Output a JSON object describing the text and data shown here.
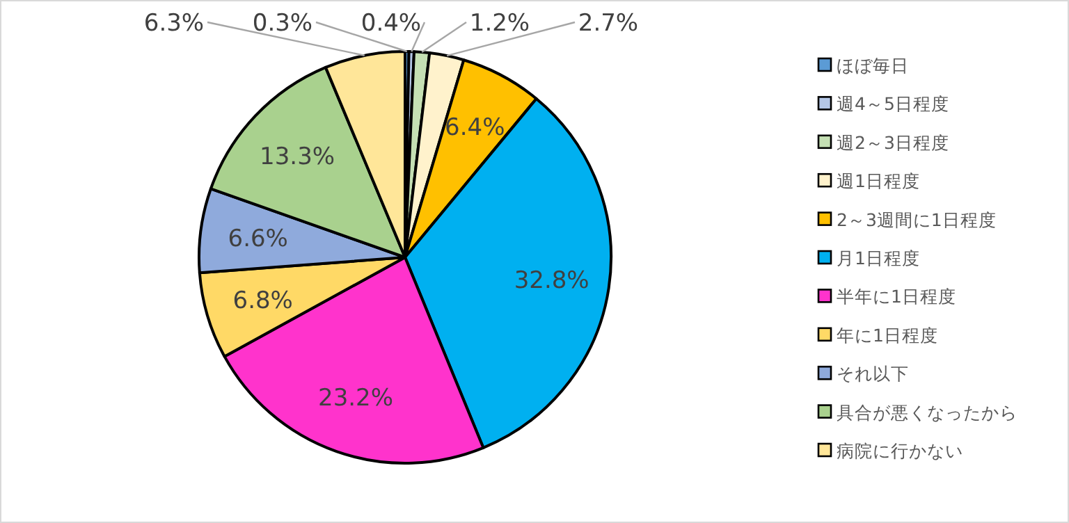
{
  "chart_data": {
    "type": "pie",
    "categories": [
      "ほぼ毎日",
      "週4～5日程度",
      "週2～3日程度",
      "週1日程度",
      "2～3週間に1日程度",
      "月1日程度",
      "半年に1日程度",
      "年に1日程度",
      "それ以下",
      "具合が悪くなったから",
      "病院に行かない"
    ],
    "values": [
      0.3,
      0.4,
      1.2,
      2.7,
      6.4,
      32.8,
      23.2,
      6.8,
      6.6,
      13.3,
      6.3
    ],
    "value_labels": [
      "0.3%",
      "0.4%",
      "1.2%",
      "2.7%",
      "6.4%",
      "32.8%",
      "23.2%",
      "6.8%",
      "6.6%",
      "13.3%",
      "6.3%"
    ],
    "colors": [
      "#5b9bd5",
      "#b4c7e7",
      "#c5e0b4",
      "#fff2cc",
      "#ffc000",
      "#00b0f0",
      "#ff33cc",
      "#ffd966",
      "#8faadc",
      "#a9d18e",
      "#ffe699"
    ],
    "legend": "right"
  }
}
